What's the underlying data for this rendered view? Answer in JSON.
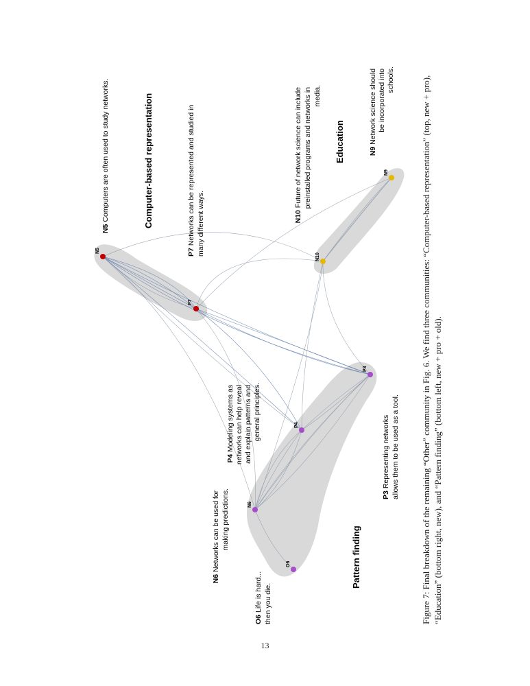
{
  "figure": {
    "communities": [
      {
        "id": "computer",
        "title": "Computer-based representation"
      },
      {
        "id": "education",
        "title": "Education"
      },
      {
        "id": "pattern",
        "title": "Pattern finding"
      }
    ],
    "nodes": [
      {
        "id": "N5",
        "color": "#c00000"
      },
      {
        "id": "P7",
        "color": "#c00000"
      },
      {
        "id": "N10",
        "color": "#e6b800"
      },
      {
        "id": "N9",
        "color": "#e6b800"
      },
      {
        "id": "P3",
        "color": "#a64dc9"
      },
      {
        "id": "P4",
        "color": "#a64dc9"
      },
      {
        "id": "N6",
        "color": "#a64dc9"
      },
      {
        "id": "O6",
        "color": "#a64dc9"
      }
    ],
    "annotations": {
      "N5": {
        "code": "N5",
        "lines": [
          "Computers are often used to study networks."
        ]
      },
      "P7": {
        "code": "P7",
        "lines": [
          "Networks can be represented and studied in",
          "many different ways."
        ]
      },
      "N10": {
        "code": "N10",
        "lines": [
          "Future of network science can include",
          "preinstalled programs and networks in",
          "media."
        ]
      },
      "N9": {
        "code": "N9",
        "lines": [
          "Network science should",
          "be incorporated into",
          "schools."
        ]
      },
      "P4": {
        "code": "P4",
        "lines": [
          "Modeling systems as",
          "networks can help reveal",
          "and explain patterns and",
          "general principles."
        ]
      },
      "P3": {
        "code": "P3",
        "lines": [
          "Representing networks",
          "allows them to be used as a tool."
        ]
      },
      "N6": {
        "code": "N6",
        "lines": [
          "Networks can be used for",
          "making predictions."
        ]
      },
      "O6": {
        "code": "O6",
        "lines": [
          "Life is hard...",
          "then you die."
        ]
      }
    }
  },
  "caption": "Figure 7: Final breakdown of the remaining “Other” community in Fig. 6. We find three communities: “Computer-based representation” (top, new + pro), “Education” (bottom right, new), and “Pattern finding” (bottom left, new + pro + old).",
  "page_number": "13"
}
